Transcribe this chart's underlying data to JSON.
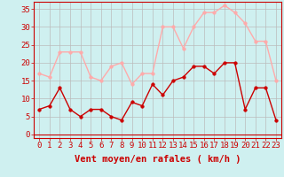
{
  "hours": [
    0,
    1,
    2,
    3,
    4,
    5,
    6,
    7,
    8,
    9,
    10,
    11,
    12,
    13,
    14,
    15,
    16,
    17,
    18,
    19,
    20,
    21,
    22,
    23
  ],
  "vent_moyen": [
    7,
    8,
    13,
    7,
    5,
    7,
    7,
    5,
    4,
    9,
    8,
    14,
    11,
    15,
    16,
    19,
    19,
    17,
    20,
    20,
    7,
    13,
    13,
    4
  ],
  "rafales": [
    17,
    16,
    23,
    23,
    23,
    16,
    15,
    19,
    20,
    14,
    17,
    17,
    30,
    30,
    24,
    30,
    34,
    34,
    36,
    34,
    31,
    26,
    26,
    15
  ],
  "color_moyen": "#cc0000",
  "color_rafales": "#ffaaaa",
  "bg_color": "#cff0f0",
  "grid_color": "#bbbbbb",
  "xlabel": "Vent moyen/en rafales ( km/h )",
  "ylabel_ticks": [
    0,
    5,
    10,
    15,
    20,
    25,
    30,
    35
  ],
  "ylim": [
    -1,
    37
  ],
  "xlim": [
    -0.5,
    23.5
  ],
  "tick_fontsize": 6.5,
  "xlabel_fontsize": 7.5,
  "marker_size": 2.5,
  "linewidth": 1.0
}
